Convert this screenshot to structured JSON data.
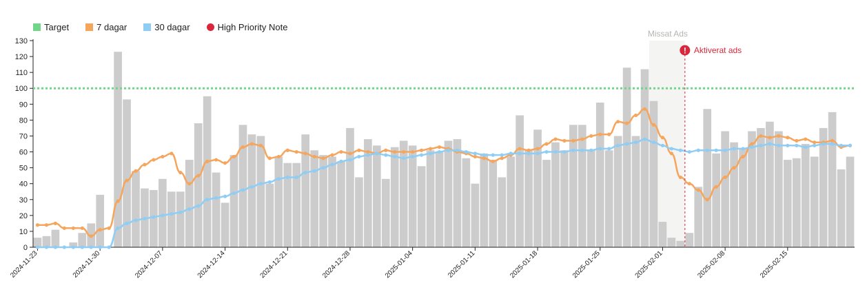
{
  "legend": [
    {
      "key": "target",
      "label": "Target",
      "color": "#6fd68a",
      "shape": "square"
    },
    {
      "key": "d7",
      "label": "7 dagar",
      "color": "#f5a55c",
      "shape": "square"
    },
    {
      "key": "d30",
      "label": "30 dagar",
      "color": "#8fcdf5",
      "shape": "square"
    },
    {
      "key": "note",
      "label": "High Priority Note",
      "color": "#d9263a",
      "shape": "circle"
    }
  ],
  "chart_data": {
    "type": "bar",
    "start_date": "2024-11-23",
    "x_tick_labels": [
      "2024-11-23",
      "2024-11-30",
      "2024-12-07",
      "2024-12-14",
      "2024-12-21",
      "2024-12-28",
      "2025-01-04",
      "2025-01-11",
      "2025-01-18",
      "2025-01-25",
      "2025-02-01",
      "2025-02-08",
      "2025-02-15"
    ],
    "x_tick_every_days": 7,
    "y_ticks": [
      0,
      10,
      20,
      30,
      40,
      50,
      60,
      70,
      80,
      90,
      100,
      110,
      120,
      130
    ],
    "ylim": [
      0,
      130
    ],
    "grid": false,
    "target": {
      "name": "Target",
      "value": 100,
      "color": "#6fd68a"
    },
    "bar_color": "#cccccc",
    "bars": [
      6,
      7,
      11,
      0,
      3,
      9,
      15,
      33,
      0,
      123,
      93,
      48,
      37,
      36,
      43,
      35,
      35,
      55,
      78,
      95,
      47,
      28,
      58,
      77,
      71,
      70,
      40,
      57,
      53,
      53,
      71,
      61,
      58,
      57,
      54,
      75,
      44,
      68,
      64,
      43,
      63,
      67,
      64,
      51,
      61,
      60,
      67,
      68,
      56,
      40,
      59,
      55,
      44,
      57,
      83,
      61,
      74,
      55,
      66,
      61,
      77,
      77,
      61,
      91,
      61,
      70,
      113,
      70,
      112,
      92,
      16,
      6,
      4,
      9,
      38,
      87,
      59,
      73,
      66,
      62,
      73,
      75,
      79,
      73,
      55,
      56,
      65,
      57,
      75,
      85,
      49,
      57
    ],
    "series": [
      {
        "name": "7 dagar",
        "color": "#f5a55c",
        "values": [
          14,
          14,
          15,
          12,
          12,
          12,
          7,
          11,
          12,
          29,
          42,
          48,
          52,
          55,
          57,
          59,
          47,
          40,
          45,
          54,
          55,
          53,
          57,
          63,
          65,
          64,
          56,
          57,
          61,
          60,
          59,
          57,
          56,
          58,
          60,
          59,
          61,
          60,
          59,
          61,
          60,
          60,
          60,
          61,
          62,
          63,
          62,
          60,
          59,
          57,
          56,
          54,
          56,
          58,
          62,
          61,
          62,
          65,
          68,
          67,
          67,
          68,
          70,
          71,
          71,
          79,
          78,
          83,
          87,
          77,
          69,
          59,
          44,
          40,
          36,
          30,
          38,
          44,
          50,
          57,
          65,
          70,
          69,
          70,
          69,
          67,
          68,
          66,
          66,
          67,
          63,
          64
        ]
      },
      {
        "name": "30 dagar",
        "color": "#8fcdf5",
        "values": [
          0,
          0,
          0,
          0,
          0,
          0,
          0,
          0,
          0,
          12,
          15,
          17,
          18,
          19,
          20,
          21,
          22,
          24,
          26,
          30,
          31,
          32,
          34,
          36,
          38,
          40,
          41,
          43,
          44,
          44,
          47,
          48,
          50,
          52,
          54,
          55,
          57,
          58,
          59,
          58,
          57,
          56,
          57,
          58,
          59,
          60,
          61,
          61,
          60,
          59,
          58,
          58,
          58,
          59,
          59,
          59,
          59,
          60,
          60,
          60,
          61,
          61,
          61,
          62,
          62,
          64,
          65,
          66,
          68,
          66,
          64,
          62,
          61,
          60,
          61,
          61,
          61,
          61,
          62,
          62,
          63,
          64,
          65,
          64,
          64,
          64,
          63,
          64,
          65,
          65,
          64,
          64
        ]
      }
    ],
    "shaded_region": {
      "label": "Missat Ads",
      "start_day": 69,
      "end_day": 73
    },
    "annotations": [
      {
        "label": "Aktiverat ads",
        "day": 73,
        "priority": "High Priority Note",
        "color": "#d9263a"
      }
    ]
  }
}
